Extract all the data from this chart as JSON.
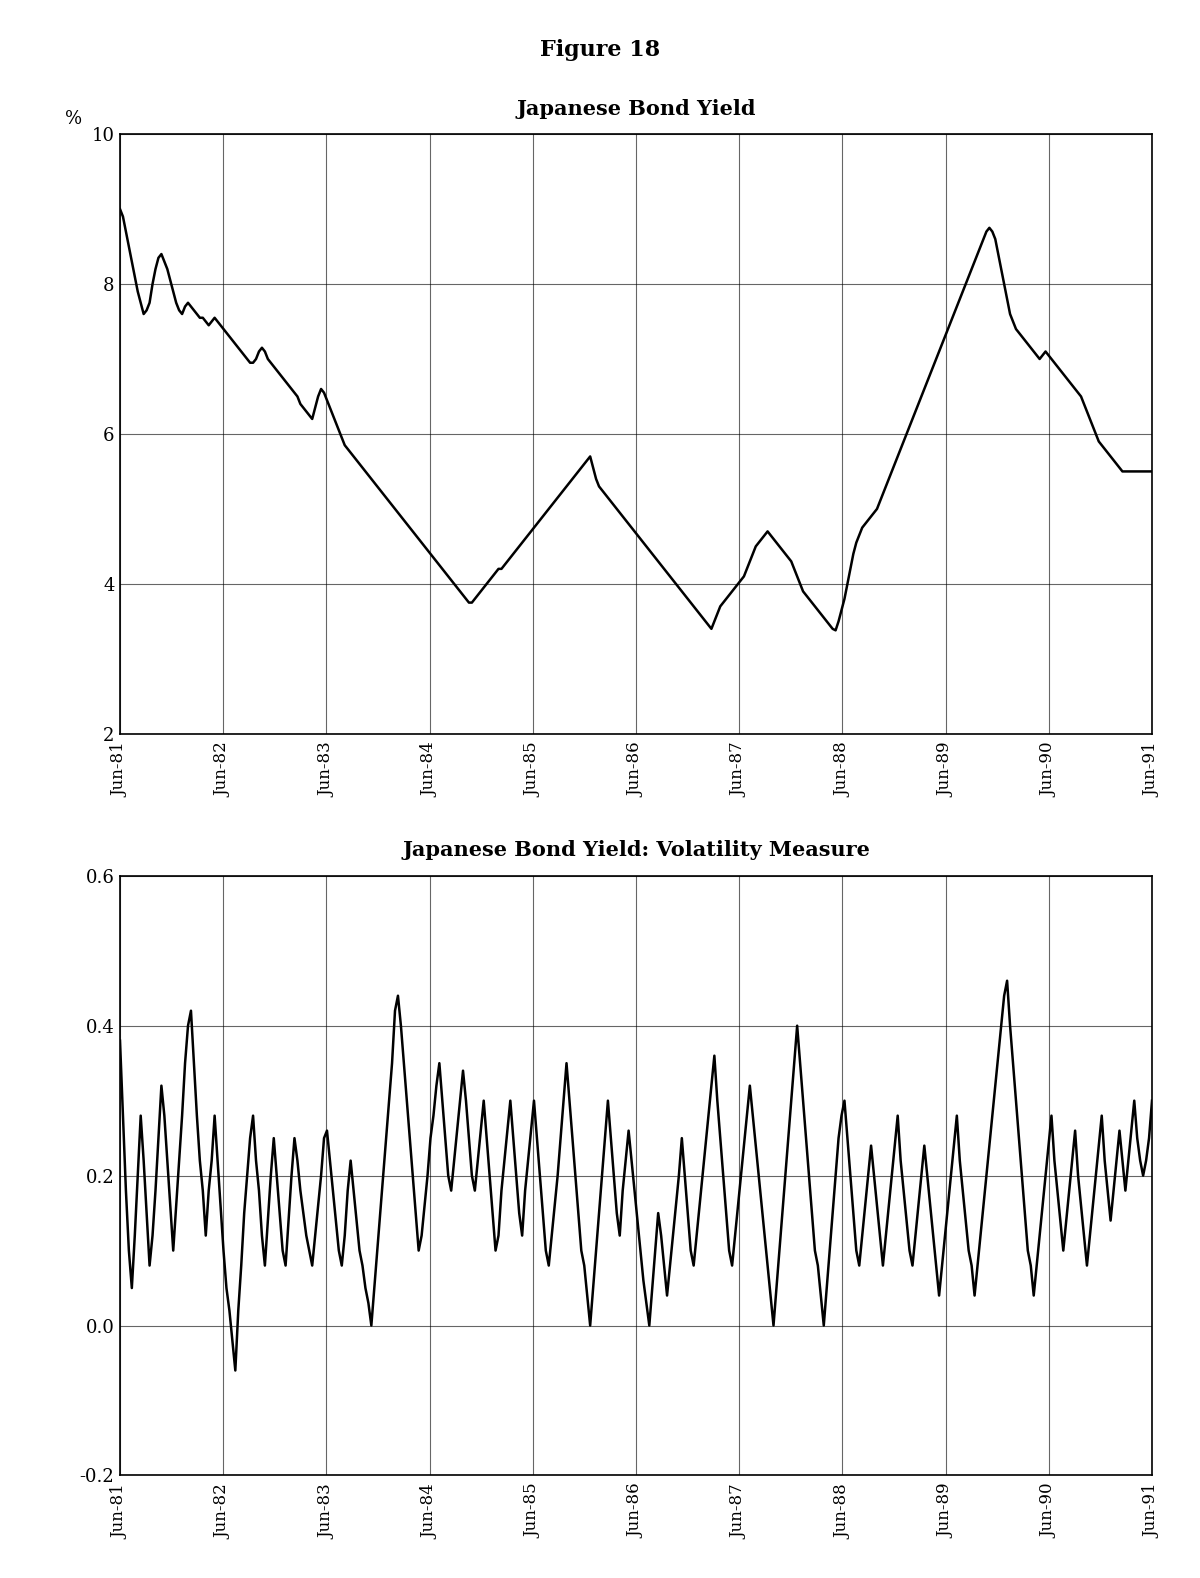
{
  "figure_title": "Figure 18",
  "title1": "Japanese Bond Yield",
  "title2": "Japanese Bond Yield: Volatility Measure",
  "ylabel1": "%",
  "ylim1": [
    2,
    10
  ],
  "yticks1": [
    2,
    4,
    6,
    8,
    10
  ],
  "ylim2": [
    -0.2,
    0.6
  ],
  "yticks2": [
    -0.2,
    0.0,
    0.2,
    0.4,
    0.6
  ],
  "xtick_labels": [
    "Jun-81",
    "Jun-82",
    "Jun-83",
    "Jun-84",
    "Jun-85",
    "Jun-86",
    "Jun-87",
    "Jun-88",
    "Jun-89",
    "Jun-90",
    "Jun-91"
  ],
  "line_color": "#000000",
  "background_color": "#ffffff",
  "yield_data": [
    9.0,
    8.9,
    8.7,
    8.5,
    8.3,
    8.1,
    7.9,
    7.75,
    7.6,
    7.65,
    7.75,
    8.0,
    8.2,
    8.35,
    8.4,
    8.3,
    8.2,
    8.05,
    7.9,
    7.75,
    7.65,
    7.6,
    7.7,
    7.75,
    7.7,
    7.65,
    7.6,
    7.55,
    7.55,
    7.5,
    7.45,
    7.5,
    7.55,
    7.5,
    7.45,
    7.4,
    7.35,
    7.3,
    7.25,
    7.2,
    7.15,
    7.1,
    7.05,
    7.0,
    6.95,
    6.95,
    7.0,
    7.1,
    7.15,
    7.1,
    7.0,
    6.95,
    6.9,
    6.85,
    6.8,
    6.75,
    6.7,
    6.65,
    6.6,
    6.55,
    6.5,
    6.4,
    6.35,
    6.3,
    6.25,
    6.2,
    6.35,
    6.5,
    6.6,
    6.55,
    6.45,
    6.35,
    6.25,
    6.15,
    6.05,
    5.95,
    5.85,
    5.8,
    5.75,
    5.7,
    5.65,
    5.6,
    5.55,
    5.5,
    5.45,
    5.4,
    5.35,
    5.3,
    5.25,
    5.2,
    5.15,
    5.1,
    5.05,
    5.0,
    4.95,
    4.9,
    4.85,
    4.8,
    4.75,
    4.7,
    4.65,
    4.6,
    4.55,
    4.5,
    4.45,
    4.4,
    4.35,
    4.3,
    4.25,
    4.2,
    4.15,
    4.1,
    4.05,
    4.0,
    3.95,
    3.9,
    3.85,
    3.8,
    3.75,
    3.75,
    3.8,
    3.85,
    3.9,
    3.95,
    4.0,
    4.05,
    4.1,
    4.15,
    4.2,
    4.2,
    4.25,
    4.3,
    4.35,
    4.4,
    4.45,
    4.5,
    4.55,
    4.6,
    4.65,
    4.7,
    4.75,
    4.8,
    4.85,
    4.9,
    4.95,
    5.0,
    5.05,
    5.1,
    5.15,
    5.2,
    5.25,
    5.3,
    5.35,
    5.4,
    5.45,
    5.5,
    5.55,
    5.6,
    5.65,
    5.7,
    5.55,
    5.4,
    5.3,
    5.25,
    5.2,
    5.15,
    5.1,
    5.05,
    5.0,
    4.95,
    4.9,
    4.85,
    4.8,
    4.75,
    4.7,
    4.65,
    4.6,
    4.55,
    4.5,
    4.45,
    4.4,
    4.35,
    4.3,
    4.25,
    4.2,
    4.15,
    4.1,
    4.05,
    4.0,
    3.95,
    3.9,
    3.85,
    3.8,
    3.75,
    3.7,
    3.65,
    3.6,
    3.55,
    3.5,
    3.45,
    3.4,
    3.5,
    3.6,
    3.7,
    3.75,
    3.8,
    3.85,
    3.9,
    3.95,
    4.0,
    4.05,
    4.1,
    4.2,
    4.3,
    4.4,
    4.5,
    4.55,
    4.6,
    4.65,
    4.7,
    4.65,
    4.6,
    4.55,
    4.5,
    4.45,
    4.4,
    4.35,
    4.3,
    4.2,
    4.1,
    4.0,
    3.9,
    3.85,
    3.8,
    3.75,
    3.7,
    3.65,
    3.6,
    3.55,
    3.5,
    3.45,
    3.4,
    3.38,
    3.5,
    3.65,
    3.8,
    4.0,
    4.2,
    4.4,
    4.55,
    4.65,
    4.75,
    4.8,
    4.85,
    4.9,
    4.95,
    5.0,
    5.1,
    5.2,
    5.3,
    5.4,
    5.5,
    5.6,
    5.7,
    5.8,
    5.9,
    6.0,
    6.1,
    6.2,
    6.3,
    6.4,
    6.5,
    6.6,
    6.7,
    6.8,
    6.9,
    7.0,
    7.1,
    7.2,
    7.3,
    7.4,
    7.5,
    7.6,
    7.7,
    7.8,
    7.9,
    8.0,
    8.1,
    8.2,
    8.3,
    8.4,
    8.5,
    8.6,
    8.7,
    8.75,
    8.7,
    8.6,
    8.4,
    8.2,
    8.0,
    7.8,
    7.6,
    7.5,
    7.4,
    7.35,
    7.3,
    7.25,
    7.2,
    7.15,
    7.1,
    7.05,
    7.0,
    7.05,
    7.1,
    7.05,
    7.0,
    6.95,
    6.9,
    6.85,
    6.8,
    6.75,
    6.7,
    6.65,
    6.6,
    6.55,
    6.5,
    6.4,
    6.3,
    6.2,
    6.1,
    6.0,
    5.9,
    5.85,
    5.8,
    5.75,
    5.7,
    5.65,
    5.6,
    5.55,
    5.5,
    5.5,
    5.5,
    5.5,
    5.5,
    5.5,
    5.5,
    5.5,
    5.5,
    5.5,
    5.5
  ],
  "vol_data": [
    0.38,
    0.28,
    0.18,
    0.1,
    0.05,
    0.12,
    0.2,
    0.28,
    0.22,
    0.15,
    0.08,
    0.12,
    0.18,
    0.25,
    0.32,
    0.28,
    0.22,
    0.16,
    0.1,
    0.16,
    0.22,
    0.28,
    0.35,
    0.4,
    0.42,
    0.35,
    0.28,
    0.22,
    0.18,
    0.12,
    0.18,
    0.22,
    0.28,
    0.22,
    0.16,
    0.1,
    0.05,
    0.02,
    -0.02,
    -0.06,
    0.02,
    0.08,
    0.15,
    0.2,
    0.25,
    0.28,
    0.22,
    0.18,
    0.12,
    0.08,
    0.14,
    0.2,
    0.25,
    0.2,
    0.15,
    0.1,
    0.08,
    0.14,
    0.2,
    0.25,
    0.22,
    0.18,
    0.15,
    0.12,
    0.1,
    0.08,
    0.12,
    0.16,
    0.2,
    0.25,
    0.26,
    0.22,
    0.18,
    0.14,
    0.1,
    0.08,
    0.12,
    0.18,
    0.22,
    0.18,
    0.14,
    0.1,
    0.08,
    0.05,
    0.03,
    0.0,
    0.05,
    0.1,
    0.15,
    0.2,
    0.25,
    0.3,
    0.35,
    0.42,
    0.44,
    0.4,
    0.35,
    0.3,
    0.25,
    0.2,
    0.15,
    0.1,
    0.12,
    0.16,
    0.2,
    0.25,
    0.28,
    0.32,
    0.35,
    0.3,
    0.25,
    0.2,
    0.18,
    0.22,
    0.26,
    0.3,
    0.34,
    0.3,
    0.25,
    0.2,
    0.18,
    0.22,
    0.26,
    0.3,
    0.25,
    0.2,
    0.15,
    0.1,
    0.12,
    0.18,
    0.22,
    0.26,
    0.3,
    0.25,
    0.2,
    0.15,
    0.12,
    0.18,
    0.22,
    0.26,
    0.3,
    0.25,
    0.2,
    0.15,
    0.1,
    0.08,
    0.12,
    0.16,
    0.2,
    0.25,
    0.3,
    0.35,
    0.3,
    0.25,
    0.2,
    0.15,
    0.1,
    0.08,
    0.04,
    0.0,
    0.05,
    0.1,
    0.15,
    0.2,
    0.25,
    0.3,
    0.25,
    0.2,
    0.15,
    0.12,
    0.18,
    0.22,
    0.26,
    0.22,
    0.18,
    0.14,
    0.1,
    0.06,
    0.03,
    0.0,
    0.05,
    0.1,
    0.15,
    0.12,
    0.08,
    0.04,
    0.08,
    0.12,
    0.16,
    0.2,
    0.25,
    0.2,
    0.15,
    0.1,
    0.08,
    0.12,
    0.16,
    0.2,
    0.24,
    0.28,
    0.32,
    0.36,
    0.3,
    0.25,
    0.2,
    0.15,
    0.1,
    0.08,
    0.12,
    0.16,
    0.2,
    0.24,
    0.28,
    0.32,
    0.28,
    0.24,
    0.2,
    0.16,
    0.12,
    0.08,
    0.04,
    0.0,
    0.05,
    0.1,
    0.15,
    0.2,
    0.25,
    0.3,
    0.35,
    0.4,
    0.35,
    0.3,
    0.25,
    0.2,
    0.15,
    0.1,
    0.08,
    0.04,
    0.0,
    0.05,
    0.1,
    0.15,
    0.2,
    0.25,
    0.28,
    0.3,
    0.25,
    0.2,
    0.15,
    0.1,
    0.08,
    0.12,
    0.16,
    0.2,
    0.24,
    0.2,
    0.16,
    0.12,
    0.08,
    0.12,
    0.16,
    0.2,
    0.24,
    0.28,
    0.22,
    0.18,
    0.14,
    0.1,
    0.08,
    0.12,
    0.16,
    0.2,
    0.24,
    0.2,
    0.16,
    0.12,
    0.08,
    0.04,
    0.08,
    0.12,
    0.16,
    0.2,
    0.24,
    0.28,
    0.22,
    0.18,
    0.14,
    0.1,
    0.08,
    0.04,
    0.08,
    0.12,
    0.16,
    0.2,
    0.24,
    0.28,
    0.32,
    0.36,
    0.4,
    0.44,
    0.46,
    0.4,
    0.35,
    0.3,
    0.25,
    0.2,
    0.15,
    0.1,
    0.08,
    0.04,
    0.08,
    0.12,
    0.16,
    0.2,
    0.24,
    0.28,
    0.22,
    0.18,
    0.14,
    0.1,
    0.14,
    0.18,
    0.22,
    0.26,
    0.2,
    0.16,
    0.12,
    0.08,
    0.12,
    0.16,
    0.2,
    0.24,
    0.28,
    0.22,
    0.18,
    0.14,
    0.18,
    0.22,
    0.26,
    0.22,
    0.18,
    0.22,
    0.26,
    0.3,
    0.25,
    0.22,
    0.2,
    0.22,
    0.25,
    0.3
  ]
}
